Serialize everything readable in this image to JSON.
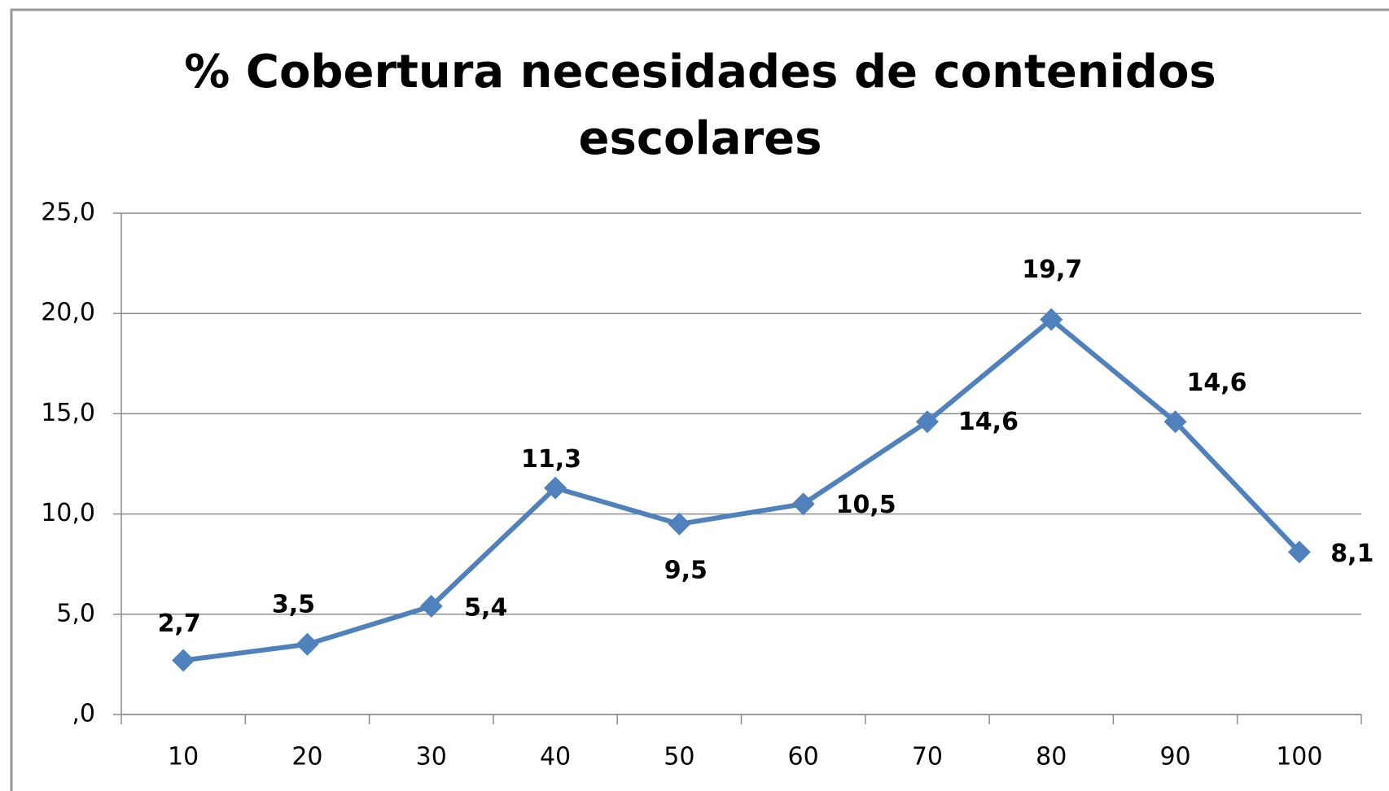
{
  "chart_data": {
    "type": "line",
    "title": "% Cobertura necesidades de contenidos escolares",
    "categories": [
      "10",
      "20",
      "30",
      "40",
      "50",
      "60",
      "70",
      "80",
      "90",
      "100"
    ],
    "series": [
      {
        "color": "#4f81bd",
        "values": [
          2.7,
          3.5,
          5.4,
          11.3,
          9.5,
          10.5,
          14.6,
          19.7,
          14.6,
          8.1
        ],
        "value_labels": [
          "2,7",
          "3,5",
          "5,4",
          "11,3",
          "9,5",
          "10,5",
          "14,6",
          "19,7",
          "14,6",
          "8,1"
        ]
      }
    ],
    "ylim": [
      0,
      25
    ],
    "yticks": [
      {
        "value": 0,
        "label": ",0"
      },
      {
        "value": 5,
        "label": "5,0"
      },
      {
        "value": 10,
        "label": "10,0"
      },
      {
        "value": 15,
        "label": "15,0"
      },
      {
        "value": 20,
        "label": "20,0"
      },
      {
        "value": 25,
        "label": "25,0"
      }
    ],
    "grid": true
  }
}
